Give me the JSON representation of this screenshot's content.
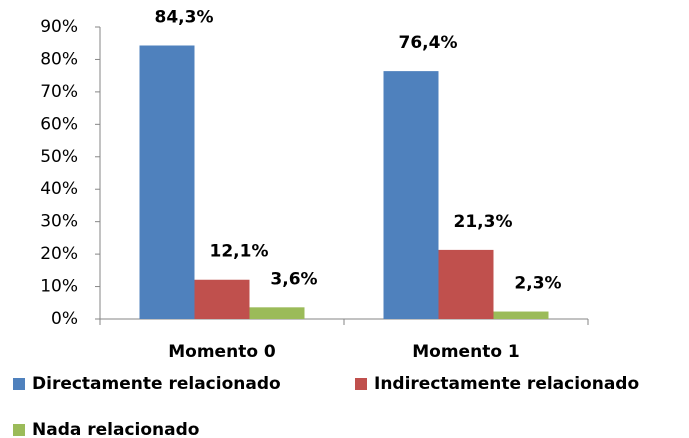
{
  "chart_data": {
    "type": "bar",
    "categories": [
      "Momento 0",
      "Momento 1"
    ],
    "series": [
      {
        "name": "Directamente relacionado",
        "color": "#4f81bd",
        "values": [
          84.3,
          76.4
        ],
        "value_labels": [
          "84,3%",
          "76,4%"
        ]
      },
      {
        "name": "Indirectamente relacionado",
        "color": "#c0504d",
        "values": [
          12.1,
          21.3
        ],
        "value_labels": [
          "12,1%",
          "21,3%"
        ]
      },
      {
        "name": "Nada relacionado",
        "color": "#9bbb59",
        "values": [
          3.6,
          2.3
        ],
        "value_labels": [
          "3,6%",
          "2,3%"
        ]
      }
    ],
    "ylim": [
      0,
      90
    ],
    "yticks": [
      {
        "value": 0,
        "label": "0%"
      },
      {
        "value": 10,
        "label": "10%"
      },
      {
        "value": 20,
        "label": "20%"
      },
      {
        "value": 30,
        "label": "30%"
      },
      {
        "value": 40,
        "label": "40%"
      },
      {
        "value": 50,
        "label": "50%"
      },
      {
        "value": 60,
        "label": "60%"
      },
      {
        "value": 70,
        "label": "70%"
      },
      {
        "value": 80,
        "label": "80%"
      },
      {
        "value": 90,
        "label": "90%"
      }
    ],
    "grid": false,
    "legend": "bottom"
  }
}
